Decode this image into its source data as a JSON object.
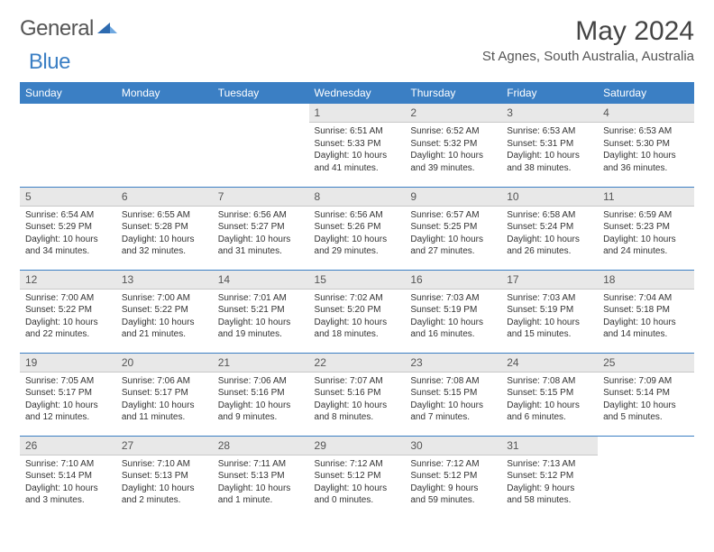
{
  "brand": {
    "word1": "General",
    "word2": "Blue"
  },
  "colors": {
    "accent": "#3b7fc4",
    "header_bg": "#3b7fc4",
    "header_fg": "#ffffff",
    "daynum_bg": "#e8e8e8",
    "rule": "#3b7fc4",
    "text": "#333333",
    "muted": "#555555",
    "background": "#ffffff"
  },
  "title": "May 2024",
  "location": "St Agnes, South Australia, Australia",
  "day_headers": [
    "Sunday",
    "Monday",
    "Tuesday",
    "Wednesday",
    "Thursday",
    "Friday",
    "Saturday"
  ],
  "layout": {
    "cols": 7,
    "rows": 5,
    "col_width_pct": 14.28
  },
  "weeks": [
    [
      {},
      {},
      {},
      {
        "n": "1",
        "sr": "Sunrise: 6:51 AM",
        "ss": "Sunset: 5:33 PM",
        "d1": "Daylight: 10 hours",
        "d2": "and 41 minutes."
      },
      {
        "n": "2",
        "sr": "Sunrise: 6:52 AM",
        "ss": "Sunset: 5:32 PM",
        "d1": "Daylight: 10 hours",
        "d2": "and 39 minutes."
      },
      {
        "n": "3",
        "sr": "Sunrise: 6:53 AM",
        "ss": "Sunset: 5:31 PM",
        "d1": "Daylight: 10 hours",
        "d2": "and 38 minutes."
      },
      {
        "n": "4",
        "sr": "Sunrise: 6:53 AM",
        "ss": "Sunset: 5:30 PM",
        "d1": "Daylight: 10 hours",
        "d2": "and 36 minutes."
      }
    ],
    [
      {
        "n": "5",
        "sr": "Sunrise: 6:54 AM",
        "ss": "Sunset: 5:29 PM",
        "d1": "Daylight: 10 hours",
        "d2": "and 34 minutes."
      },
      {
        "n": "6",
        "sr": "Sunrise: 6:55 AM",
        "ss": "Sunset: 5:28 PM",
        "d1": "Daylight: 10 hours",
        "d2": "and 32 minutes."
      },
      {
        "n": "7",
        "sr": "Sunrise: 6:56 AM",
        "ss": "Sunset: 5:27 PM",
        "d1": "Daylight: 10 hours",
        "d2": "and 31 minutes."
      },
      {
        "n": "8",
        "sr": "Sunrise: 6:56 AM",
        "ss": "Sunset: 5:26 PM",
        "d1": "Daylight: 10 hours",
        "d2": "and 29 minutes."
      },
      {
        "n": "9",
        "sr": "Sunrise: 6:57 AM",
        "ss": "Sunset: 5:25 PM",
        "d1": "Daylight: 10 hours",
        "d2": "and 27 minutes."
      },
      {
        "n": "10",
        "sr": "Sunrise: 6:58 AM",
        "ss": "Sunset: 5:24 PM",
        "d1": "Daylight: 10 hours",
        "d2": "and 26 minutes."
      },
      {
        "n": "11",
        "sr": "Sunrise: 6:59 AM",
        "ss": "Sunset: 5:23 PM",
        "d1": "Daylight: 10 hours",
        "d2": "and 24 minutes."
      }
    ],
    [
      {
        "n": "12",
        "sr": "Sunrise: 7:00 AM",
        "ss": "Sunset: 5:22 PM",
        "d1": "Daylight: 10 hours",
        "d2": "and 22 minutes."
      },
      {
        "n": "13",
        "sr": "Sunrise: 7:00 AM",
        "ss": "Sunset: 5:22 PM",
        "d1": "Daylight: 10 hours",
        "d2": "and 21 minutes."
      },
      {
        "n": "14",
        "sr": "Sunrise: 7:01 AM",
        "ss": "Sunset: 5:21 PM",
        "d1": "Daylight: 10 hours",
        "d2": "and 19 minutes."
      },
      {
        "n": "15",
        "sr": "Sunrise: 7:02 AM",
        "ss": "Sunset: 5:20 PM",
        "d1": "Daylight: 10 hours",
        "d2": "and 18 minutes."
      },
      {
        "n": "16",
        "sr": "Sunrise: 7:03 AM",
        "ss": "Sunset: 5:19 PM",
        "d1": "Daylight: 10 hours",
        "d2": "and 16 minutes."
      },
      {
        "n": "17",
        "sr": "Sunrise: 7:03 AM",
        "ss": "Sunset: 5:19 PM",
        "d1": "Daylight: 10 hours",
        "d2": "and 15 minutes."
      },
      {
        "n": "18",
        "sr": "Sunrise: 7:04 AM",
        "ss": "Sunset: 5:18 PM",
        "d1": "Daylight: 10 hours",
        "d2": "and 14 minutes."
      }
    ],
    [
      {
        "n": "19",
        "sr": "Sunrise: 7:05 AM",
        "ss": "Sunset: 5:17 PM",
        "d1": "Daylight: 10 hours",
        "d2": "and 12 minutes."
      },
      {
        "n": "20",
        "sr": "Sunrise: 7:06 AM",
        "ss": "Sunset: 5:17 PM",
        "d1": "Daylight: 10 hours",
        "d2": "and 11 minutes."
      },
      {
        "n": "21",
        "sr": "Sunrise: 7:06 AM",
        "ss": "Sunset: 5:16 PM",
        "d1": "Daylight: 10 hours",
        "d2": "and 9 minutes."
      },
      {
        "n": "22",
        "sr": "Sunrise: 7:07 AM",
        "ss": "Sunset: 5:16 PM",
        "d1": "Daylight: 10 hours",
        "d2": "and 8 minutes."
      },
      {
        "n": "23",
        "sr": "Sunrise: 7:08 AM",
        "ss": "Sunset: 5:15 PM",
        "d1": "Daylight: 10 hours",
        "d2": "and 7 minutes."
      },
      {
        "n": "24",
        "sr": "Sunrise: 7:08 AM",
        "ss": "Sunset: 5:15 PM",
        "d1": "Daylight: 10 hours",
        "d2": "and 6 minutes."
      },
      {
        "n": "25",
        "sr": "Sunrise: 7:09 AM",
        "ss": "Sunset: 5:14 PM",
        "d1": "Daylight: 10 hours",
        "d2": "and 5 minutes."
      }
    ],
    [
      {
        "n": "26",
        "sr": "Sunrise: 7:10 AM",
        "ss": "Sunset: 5:14 PM",
        "d1": "Daylight: 10 hours",
        "d2": "and 3 minutes."
      },
      {
        "n": "27",
        "sr": "Sunrise: 7:10 AM",
        "ss": "Sunset: 5:13 PM",
        "d1": "Daylight: 10 hours",
        "d2": "and 2 minutes."
      },
      {
        "n": "28",
        "sr": "Sunrise: 7:11 AM",
        "ss": "Sunset: 5:13 PM",
        "d1": "Daylight: 10 hours",
        "d2": "and 1 minute."
      },
      {
        "n": "29",
        "sr": "Sunrise: 7:12 AM",
        "ss": "Sunset: 5:12 PM",
        "d1": "Daylight: 10 hours",
        "d2": "and 0 minutes."
      },
      {
        "n": "30",
        "sr": "Sunrise: 7:12 AM",
        "ss": "Sunset: 5:12 PM",
        "d1": "Daylight: 9 hours",
        "d2": "and 59 minutes."
      },
      {
        "n": "31",
        "sr": "Sunrise: 7:13 AM",
        "ss": "Sunset: 5:12 PM",
        "d1": "Daylight: 9 hours",
        "d2": "and 58 minutes."
      },
      {}
    ]
  ]
}
